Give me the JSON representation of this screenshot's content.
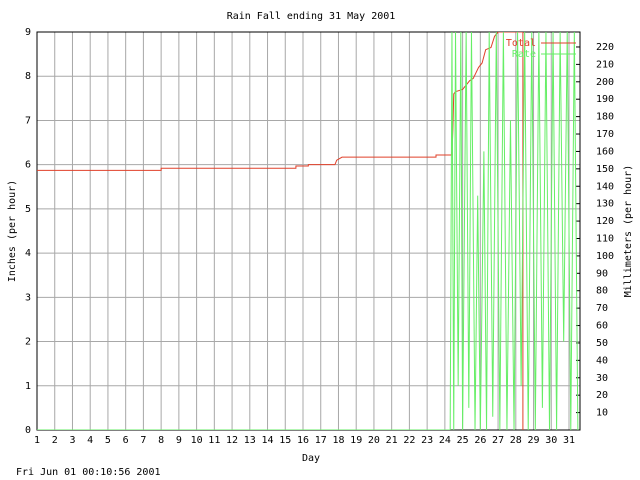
{
  "chart_data": {
    "type": "line",
    "title": "Rain Fall ending 31 May 2001",
    "xlabel": "Day",
    "ylabel": "Inches (per hour)",
    "y2label": "Millimeters (per hour)",
    "footer": "Fri Jun 01 00:10:56 2001",
    "xlim": [
      1,
      31.62
    ],
    "xticks": [
      1,
      2,
      3,
      4,
      5,
      6,
      7,
      8,
      9,
      10,
      11,
      12,
      13,
      14,
      15,
      16,
      17,
      18,
      19,
      20,
      21,
      22,
      23,
      24,
      25,
      26,
      27,
      28,
      29,
      30,
      31
    ],
    "ylim": [
      0,
      9
    ],
    "yticks": [
      0,
      1,
      2,
      3,
      4,
      5,
      6,
      7,
      8,
      9
    ],
    "y2lim": [
      0,
      228.6
    ],
    "y2ticks": [
      10,
      20,
      30,
      40,
      50,
      60,
      70,
      80,
      90,
      100,
      110,
      120,
      130,
      140,
      150,
      160,
      170,
      180,
      190,
      200,
      210,
      220
    ],
    "grid": true,
    "legend": "top-right",
    "series": [
      {
        "name": "Total",
        "color": "#e0402a",
        "x": [
          1,
          8,
          8,
          15.6,
          15.6,
          16.3,
          16.3,
          17.8,
          17.9,
          18.2,
          23.5,
          23.5,
          24.4,
          24.45,
          24.5,
          24.6,
          25.0,
          25.4,
          25.6,
          25.9,
          26.1,
          26.3,
          26.6,
          26.8,
          27.0,
          28.4,
          28.4
        ],
        "values": [
          5.87,
          5.87,
          5.92,
          5.92,
          5.97,
          5.97,
          6.0,
          6.0,
          6.1,
          6.17,
          6.17,
          6.22,
          6.22,
          6.8,
          7.6,
          7.65,
          7.7,
          7.9,
          7.95,
          8.2,
          8.3,
          8.6,
          8.65,
          8.9,
          9,
          9,
          0
        ]
      },
      {
        "name": "Rate",
        "color": "#66ee66",
        "x": [
          1,
          24.3,
          24.4,
          24.5,
          24.6,
          24.75,
          24.9,
          25.0,
          25.2,
          25.35,
          25.5,
          25.7,
          25.85,
          26.0,
          26.2,
          26.35,
          26.5,
          26.7,
          26.9,
          27.1,
          27.3,
          27.5,
          27.7,
          27.9,
          28.1,
          28.3,
          28.5,
          28.7,
          28.9,
          29.1,
          29.3,
          29.5,
          29.7,
          29.9,
          30.1,
          30.3,
          30.5,
          30.7,
          30.9,
          31.1,
          31.3,
          31.5
        ],
        "values": [
          0,
          0,
          9,
          0,
          9,
          1,
          9,
          0,
          9,
          0.5,
          9,
          0,
          5.3,
          0,
          6.3,
          0,
          9,
          0.3,
          9,
          0,
          9,
          0,
          7,
          0,
          9,
          1,
          9,
          0,
          9,
          0,
          9,
          0.5,
          9,
          0,
          9,
          0,
          9,
          2,
          9,
          0,
          9,
          0
        ]
      }
    ]
  }
}
